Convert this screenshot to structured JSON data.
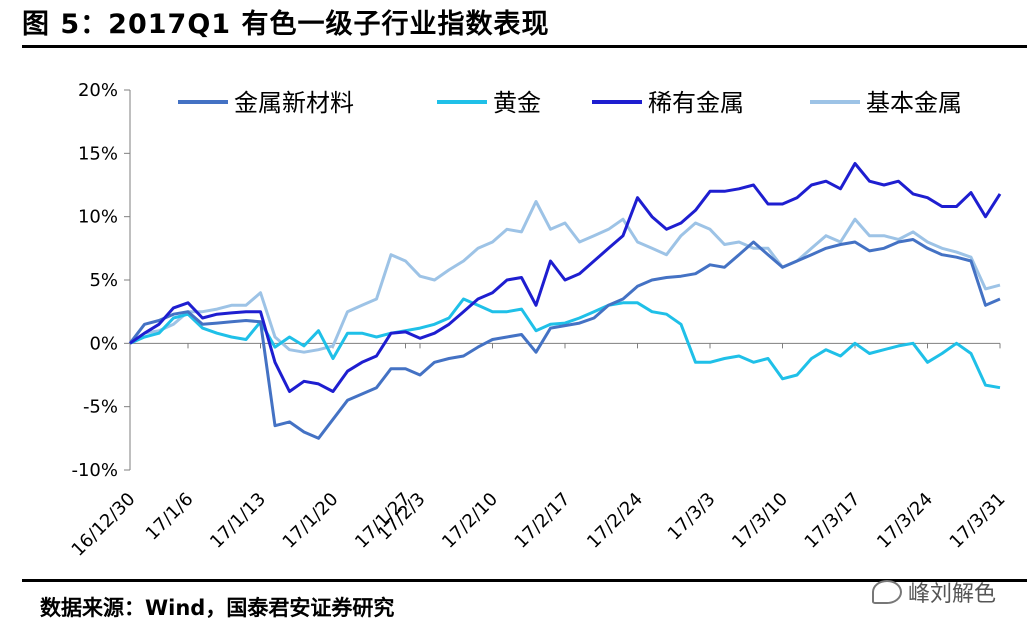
{
  "header": {
    "title": "图 5：2017Q1 有色一级子行业指数表现"
  },
  "footer": {
    "source": "数据来源：Wind，国泰君安证券研究",
    "watermark": "峰刘解色"
  },
  "chart_data": {
    "type": "line",
    "title": "",
    "xlabel": "",
    "ylabel": "",
    "ylim": [
      -10,
      20
    ],
    "yticks": [
      "-10%",
      "-5%",
      "0%",
      "5%",
      "10%",
      "15%",
      "20%"
    ],
    "x": [
      "16/12/30",
      "17/1/3",
      "17/1/4",
      "17/1/5",
      "17/1/6",
      "17/1/9",
      "17/1/10",
      "17/1/11",
      "17/1/12",
      "17/1/13",
      "17/1/16",
      "17/1/17",
      "17/1/18",
      "17/1/19",
      "17/1/20",
      "17/1/23",
      "17/1/24",
      "17/1/25",
      "17/1/26",
      "17/1/27",
      "17/2/3",
      "17/2/6",
      "17/2/7",
      "17/2/8",
      "17/2/9",
      "17/2/10",
      "17/2/13",
      "17/2/14",
      "17/2/15",
      "17/2/16",
      "17/2/17",
      "17/2/20",
      "17/2/21",
      "17/2/22",
      "17/2/23",
      "17/2/24",
      "17/2/27",
      "17/2/28",
      "17/3/1",
      "17/3/2",
      "17/3/3",
      "17/3/6",
      "17/3/7",
      "17/3/8",
      "17/3/9",
      "17/3/10",
      "17/3/13",
      "17/3/14",
      "17/3/15",
      "17/3/16",
      "17/3/17",
      "17/3/20",
      "17/3/21",
      "17/3/22",
      "17/3/23",
      "17/3/24",
      "17/3/27",
      "17/3/28",
      "17/3/29",
      "17/3/30",
      "17/3/31"
    ],
    "xtick_labels": [
      "16/12/30",
      "17/1/6",
      "17/1/13",
      "17/1/20",
      "17/1/27",
      "17/2/3",
      "17/2/10",
      "17/2/17",
      "17/2/24",
      "17/3/3",
      "17/3/10",
      "17/3/17",
      "17/3/24",
      "17/3/31"
    ],
    "legend_position": "top",
    "grid": false,
    "series": [
      {
        "name": "金属新材料",
        "color": "#4472C4",
        "values": [
          0,
          1.5,
          1.8,
          2.3,
          2.5,
          1.5,
          1.6,
          1.7,
          1.8,
          1.7,
          -6.5,
          -6.2,
          -7.0,
          -7.5,
          -6.0,
          -4.5,
          -4.0,
          -3.5,
          -2.0,
          -2.0,
          -2.5,
          -1.5,
          -1.2,
          -1.0,
          -0.3,
          0.3,
          0.5,
          0.7,
          -0.7,
          1.2,
          1.4,
          1.6,
          2.0,
          3.0,
          3.5,
          4.5,
          5.0,
          5.2,
          5.3,
          5.5,
          6.2,
          6.0,
          7.0,
          8.0,
          7.0,
          6.0,
          6.5,
          7.0,
          7.5,
          7.8,
          8.0,
          7.3,
          7.5,
          8.0,
          8.2,
          7.5,
          7.0,
          6.8,
          6.5,
          3.0,
          3.5
        ]
      },
      {
        "name": "黄金",
        "color": "#1FC0E8",
        "values": [
          0,
          0.5,
          0.8,
          2.0,
          2.3,
          1.2,
          0.8,
          0.5,
          0.3,
          1.7,
          -0.3,
          0.5,
          -0.2,
          1.0,
          -1.2,
          0.8,
          0.8,
          0.5,
          0.8,
          1.0,
          1.2,
          1.5,
          2.0,
          3.5,
          3.0,
          2.5,
          2.5,
          2.7,
          1.0,
          1.5,
          1.6,
          2.0,
          2.5,
          3.0,
          3.2,
          3.2,
          2.5,
          2.3,
          1.5,
          -1.5,
          -1.5,
          -1.2,
          -1.0,
          -1.5,
          -1.2,
          -2.8,
          -2.5,
          -1.2,
          -0.5,
          -1.0,
          0.0,
          -0.8,
          -0.5,
          -0.2,
          0.0,
          -1.5,
          -0.8,
          0.0,
          -0.8,
          -3.3,
          -3.5
        ]
      },
      {
        "name": "稀有金属",
        "color": "#1E1ED0",
        "values": [
          0,
          0.8,
          1.5,
          2.8,
          3.2,
          2.0,
          2.3,
          2.4,
          2.5,
          2.5,
          -1.5,
          -3.8,
          -3.0,
          -3.2,
          -3.8,
          -2.2,
          -1.5,
          -1.0,
          0.8,
          0.9,
          0.4,
          0.8,
          1.5,
          2.5,
          3.5,
          4.0,
          5.0,
          5.2,
          3.0,
          6.5,
          5.0,
          5.5,
          6.5,
          7.5,
          8.5,
          11.5,
          10.0,
          9.0,
          9.5,
          10.5,
          12.0,
          12.0,
          12.2,
          12.5,
          11.0,
          11.0,
          11.5,
          12.5,
          12.8,
          12.2,
          14.2,
          12.8,
          12.5,
          12.8,
          11.8,
          11.5,
          10.8,
          10.8,
          11.9,
          10.0,
          11.8
        ]
      },
      {
        "name": "基本金属",
        "color": "#9DC3E6",
        "values": [
          0,
          0.8,
          1.0,
          1.5,
          2.5,
          2.5,
          2.7,
          3.0,
          3.0,
          4.0,
          0.5,
          -0.5,
          -0.7,
          -0.5,
          -0.2,
          2.5,
          3.0,
          3.5,
          7.0,
          6.5,
          5.3,
          5.0,
          5.8,
          6.5,
          7.5,
          8.0,
          9.0,
          8.8,
          11.2,
          9.0,
          9.5,
          8.0,
          8.5,
          9.0,
          9.8,
          8.0,
          7.5,
          7.0,
          8.5,
          9.5,
          9.0,
          7.8,
          8.0,
          7.5,
          7.5,
          6.0,
          6.5,
          7.5,
          8.5,
          8.0,
          9.8,
          8.5,
          8.5,
          8.2,
          8.8,
          8.0,
          7.5,
          7.2,
          6.8,
          4.3,
          4.6
        ]
      }
    ]
  }
}
